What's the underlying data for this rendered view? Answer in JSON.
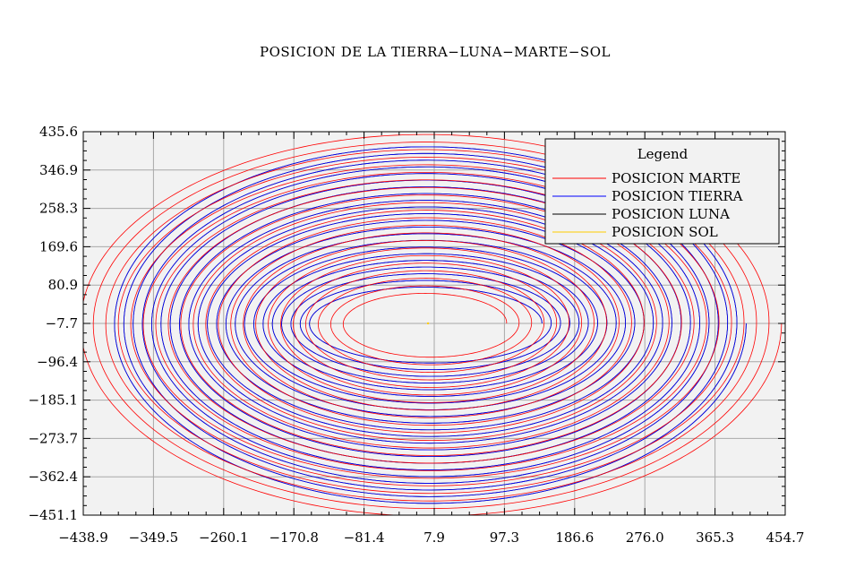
{
  "chart_data": {
    "type": "line",
    "title": "POSICION DE LA TIERRA−LUNA−MARTE−SOL",
    "xlabel": "",
    "ylabel": "",
    "xlim": [
      -438.9,
      454.7
    ],
    "ylim": [
      -451.1,
      435.6
    ],
    "x_ticks": [
      "−438.9",
      "−349.5",
      "−260.1",
      "−170.8",
      "−81.4",
      "7.9",
      "97.3",
      "186.6",
      "276.0",
      "365.3",
      "454.7"
    ],
    "y_ticks": [
      "435.6",
      "346.9",
      "258.3",
      "169.6",
      "80.9",
      "−7.7",
      "−96.4",
      "−185.1",
      "−273.7",
      "−362.4",
      "−451.1"
    ],
    "grid": true,
    "background": "#f2f2f2",
    "legend": {
      "title": "Legend",
      "position": "top-right",
      "entries": [
        {
          "label": "POSICION MARTE",
          "color": "#ff0000"
        },
        {
          "label": "POSICION TIERRA",
          "color": "#0000ff"
        },
        {
          "label": "POSICION LUNA",
          "color": "#000000"
        },
        {
          "label": "POSICION SOL",
          "color": "#ffcc00"
        }
      ]
    },
    "series": [
      {
        "name": "POSICION MARTE",
        "color": "#ff0000",
        "shape": "expanding-spiral",
        "center": [
          0,
          -7.7
        ],
        "start_radius": [
          100,
          65
        ],
        "end_radius": [
          450,
          450
        ],
        "turns": 22
      },
      {
        "name": "POSICION TIERRA",
        "color": "#0000ff",
        "shape": "expanding-spiral",
        "center": [
          0,
          -7.7
        ],
        "start_radius": [
          145,
          80
        ],
        "end_radius": [
          405,
          420
        ],
        "turns": 22
      },
      {
        "name": "POSICION LUNA",
        "color": "#000000",
        "shape": "expanding-spiral",
        "center": [
          0,
          -7.7
        ],
        "start_radius": [
          145,
          80
        ],
        "end_radius": [
          405,
          420
        ],
        "turns": 22
      },
      {
        "name": "POSICION SOL",
        "color": "#ffcc00",
        "shape": "point",
        "x": [
          0
        ],
        "y": [
          -7.7
        ]
      }
    ]
  }
}
